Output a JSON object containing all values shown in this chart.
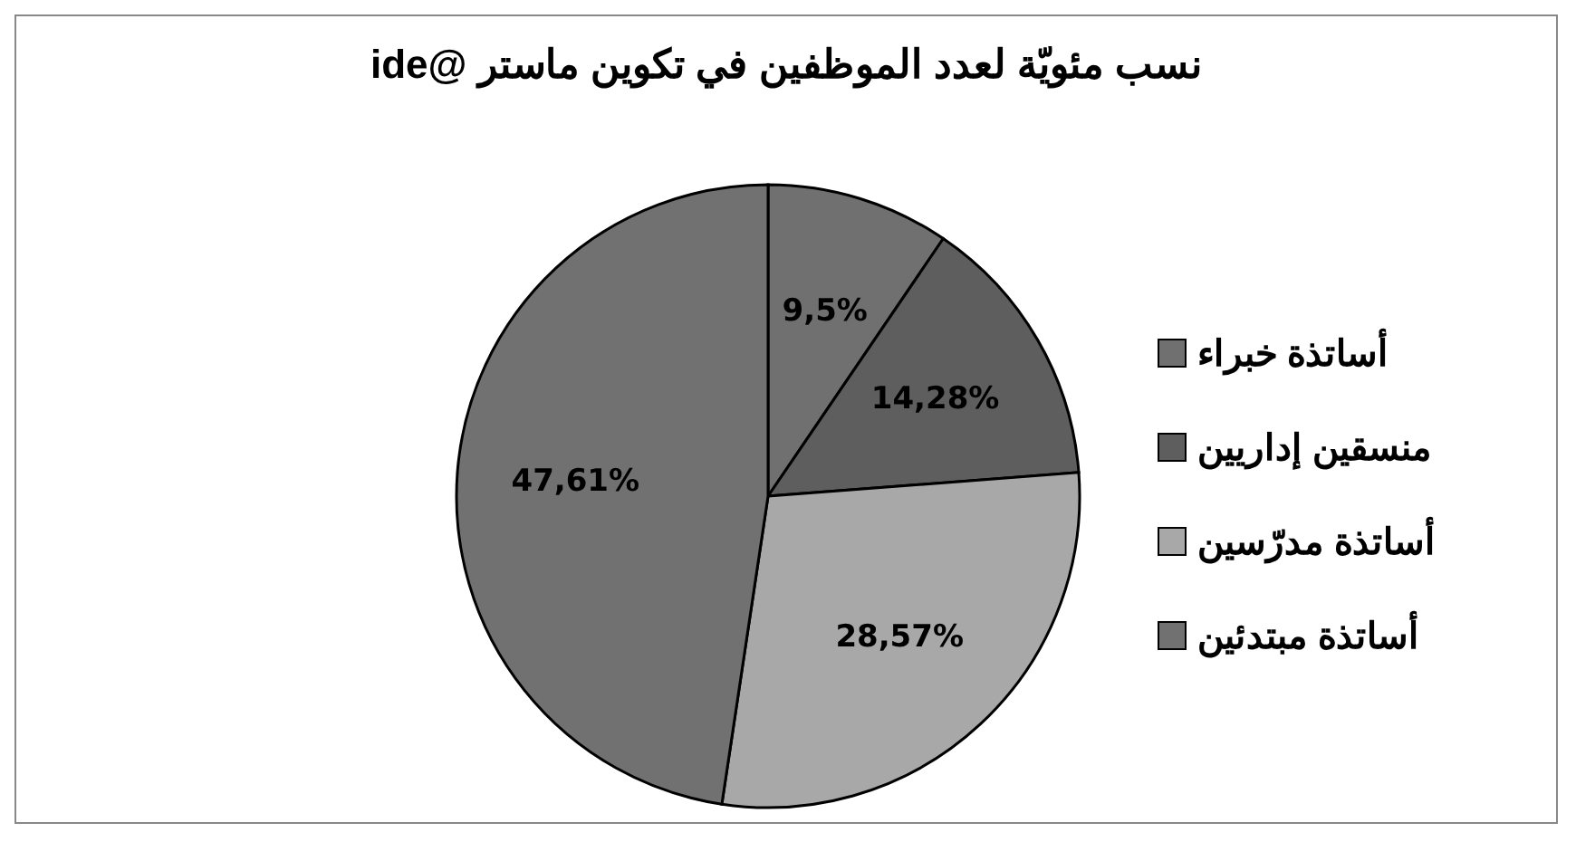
{
  "chart_data": {
    "type": "pie",
    "title": "نسب مئويّة لعدد الموظفين في تكوين ماستر @ide",
    "categories": [
      "أساتذة خبراء",
      "منسقين إداريين",
      "أساتذة مدرّسين",
      "أساتذة مبتدئين"
    ],
    "values": [
      9.5,
      14.28,
      28.57,
      47.61
    ],
    "value_labels": [
      "9,5%",
      "14,28%",
      "28,57%",
      "47,61%"
    ],
    "colors": [
      "#707070",
      "#5e5e5e",
      "#a8a8a8",
      "#717171"
    ],
    "legend": "right"
  }
}
